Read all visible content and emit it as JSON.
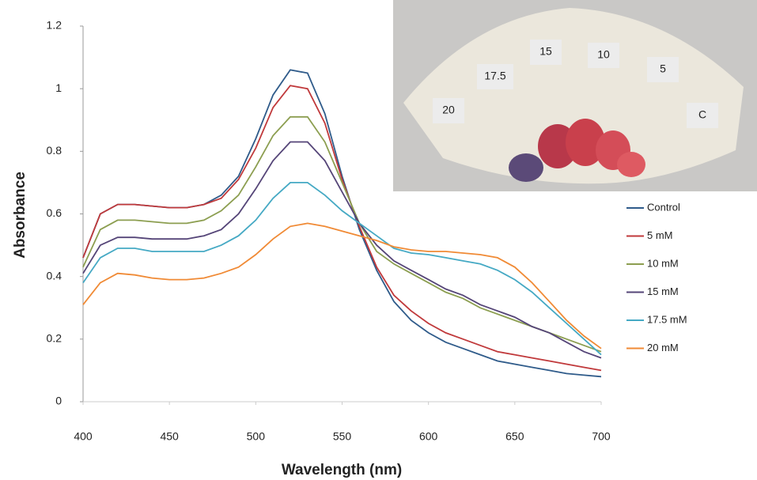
{
  "chart_data": {
    "type": "line",
    "x_label": "Wavelength (nm)",
    "y_label": "Absorbance",
    "x": [
      400,
      410,
      420,
      430,
      440,
      450,
      460,
      470,
      480,
      490,
      500,
      510,
      520,
      530,
      540,
      550,
      560,
      570,
      580,
      590,
      600,
      610,
      620,
      630,
      640,
      650,
      660,
      670,
      680,
      690,
      700
    ],
    "xlim": [
      400,
      700
    ],
    "xticks": [
      400,
      450,
      500,
      550,
      600,
      650,
      700
    ],
    "ylim": [
      0,
      1.2
    ],
    "yticks": [
      0,
      0.2,
      0.4,
      0.6,
      0.8,
      1,
      1.2
    ],
    "grid": false,
    "legend": "right",
    "series": [
      {
        "name": "Control",
        "color": "#2f5b8a",
        "values": [
          0.46,
          0.6,
          0.63,
          0.63,
          0.625,
          0.62,
          0.62,
          0.63,
          0.66,
          0.72,
          0.84,
          0.98,
          1.06,
          1.05,
          0.92,
          0.72,
          0.55,
          0.42,
          0.32,
          0.26,
          0.22,
          0.19,
          0.17,
          0.15,
          0.13,
          0.12,
          0.11,
          0.1,
          0.09,
          0.085,
          0.08
        ]
      },
      {
        "name": "5 mM",
        "color": "#c0393b",
        "values": [
          0.46,
          0.6,
          0.63,
          0.63,
          0.625,
          0.62,
          0.62,
          0.63,
          0.65,
          0.71,
          0.81,
          0.94,
          1.01,
          1.0,
          0.89,
          0.71,
          0.56,
          0.43,
          0.34,
          0.29,
          0.25,
          0.22,
          0.2,
          0.18,
          0.16,
          0.15,
          0.14,
          0.13,
          0.12,
          0.11,
          0.1
        ]
      },
      {
        "name": "10 mM",
        "color": "#8c9e50",
        "values": [
          0.43,
          0.55,
          0.58,
          0.58,
          0.575,
          0.57,
          0.57,
          0.58,
          0.61,
          0.66,
          0.75,
          0.85,
          0.91,
          0.91,
          0.83,
          0.7,
          0.57,
          0.48,
          0.44,
          0.41,
          0.38,
          0.35,
          0.33,
          0.3,
          0.28,
          0.26,
          0.24,
          0.22,
          0.2,
          0.18,
          0.16
        ]
      },
      {
        "name": "15 mM",
        "color": "#554578",
        "values": [
          0.41,
          0.5,
          0.525,
          0.525,
          0.52,
          0.52,
          0.52,
          0.53,
          0.55,
          0.6,
          0.68,
          0.77,
          0.83,
          0.83,
          0.77,
          0.67,
          0.57,
          0.5,
          0.45,
          0.42,
          0.39,
          0.36,
          0.34,
          0.31,
          0.29,
          0.27,
          0.24,
          0.22,
          0.19,
          0.16,
          0.14
        ]
      },
      {
        "name": "17.5 mM",
        "color": "#45a9c4",
        "values": [
          0.38,
          0.46,
          0.49,
          0.49,
          0.48,
          0.48,
          0.48,
          0.48,
          0.5,
          0.53,
          0.58,
          0.65,
          0.7,
          0.7,
          0.66,
          0.61,
          0.57,
          0.53,
          0.49,
          0.475,
          0.47,
          0.46,
          0.45,
          0.44,
          0.42,
          0.39,
          0.35,
          0.3,
          0.25,
          0.2,
          0.15
        ]
      },
      {
        "name": "20 mM",
        "color": "#f08a35",
        "values": [
          0.31,
          0.38,
          0.41,
          0.405,
          0.395,
          0.39,
          0.39,
          0.395,
          0.41,
          0.43,
          0.47,
          0.52,
          0.56,
          0.57,
          0.56,
          0.545,
          0.53,
          0.515,
          0.495,
          0.485,
          0.48,
          0.48,
          0.475,
          0.47,
          0.46,
          0.43,
          0.38,
          0.32,
          0.26,
          0.21,
          0.17
        ]
      }
    ],
    "inset_labels": [
      "20",
      "17.5",
      "15",
      "10",
      "5",
      "C"
    ]
  }
}
